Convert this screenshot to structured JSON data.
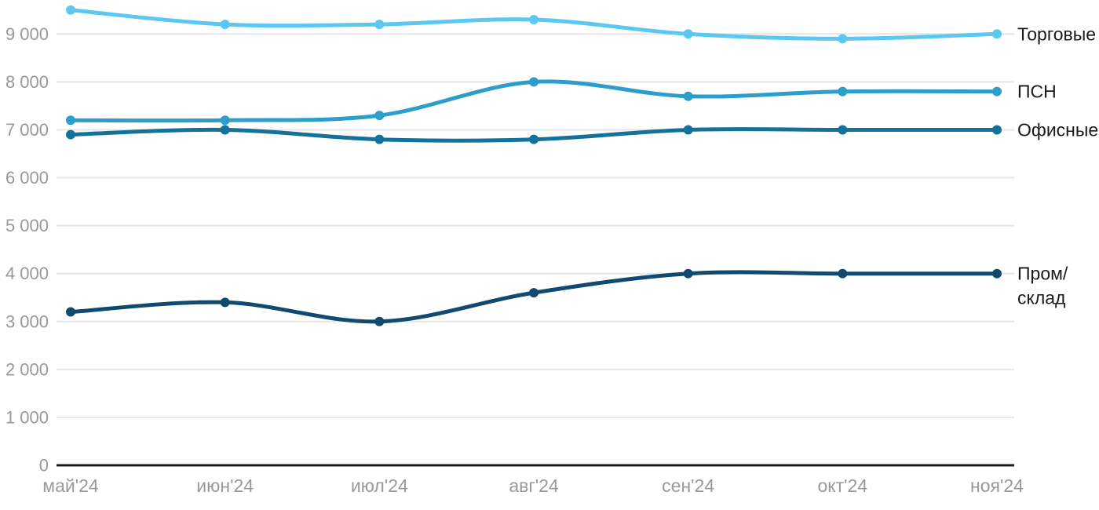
{
  "chart_data": {
    "type": "line",
    "title": "",
    "xlabel": "",
    "ylabel": "",
    "grid": true,
    "legend_position": "right-end-labels",
    "x_axis": {
      "categories": [
        "май'24",
        "июн'24",
        "июл'24",
        "авг'24",
        "сен'24",
        "окт'24",
        "ноя'24"
      ]
    },
    "y_axis": {
      "range": [
        0,
        9000
      ],
      "ticks": [
        {
          "value": 0,
          "label": "0"
        },
        {
          "value": 1000,
          "label": "1 000"
        },
        {
          "value": 2000,
          "label": "2 000"
        },
        {
          "value": 3000,
          "label": "3 000"
        },
        {
          "value": 4000,
          "label": "4 000"
        },
        {
          "value": 5000,
          "label": "5 000"
        },
        {
          "value": 6000,
          "label": "6 000"
        },
        {
          "value": 7000,
          "label": "7 000"
        },
        {
          "value": 8000,
          "label": "8 000"
        },
        {
          "value": 9000,
          "label": "9 000"
        }
      ]
    },
    "series": [
      {
        "id": "torgovye",
        "name": "Торговые",
        "label_lines": [
          "Торговые"
        ],
        "color": "#5BC8F2",
        "values": [
          9500,
          9200,
          9200,
          9300,
          9000,
          8900,
          9000
        ]
      },
      {
        "id": "psn",
        "name": "ПСН",
        "label_lines": [
          "ПСН"
        ],
        "color": "#2D9ECC",
        "values": [
          7200,
          7200,
          7300,
          8000,
          7700,
          7800,
          7800
        ]
      },
      {
        "id": "ofisnye",
        "name": "Офисные",
        "label_lines": [
          "Офисные"
        ],
        "color": "#14729A",
        "values": [
          6900,
          7000,
          6800,
          6800,
          7000,
          7000,
          7000
        ]
      },
      {
        "id": "prom-sklad",
        "name": "Пром/склад",
        "label_lines": [
          "Пром/",
          "склад"
        ],
        "color": "#114A6E",
        "values": [
          3200,
          3400,
          3000,
          3600,
          4000,
          4000,
          4000
        ]
      }
    ]
  },
  "styles": {
    "background": "#ffffff",
    "axis_line_color": "#1c1c1c",
    "grid_line_color": "#e6e6e6",
    "tick_label_color": "#97999c",
    "series_label_color": "#1a1a1a"
  }
}
